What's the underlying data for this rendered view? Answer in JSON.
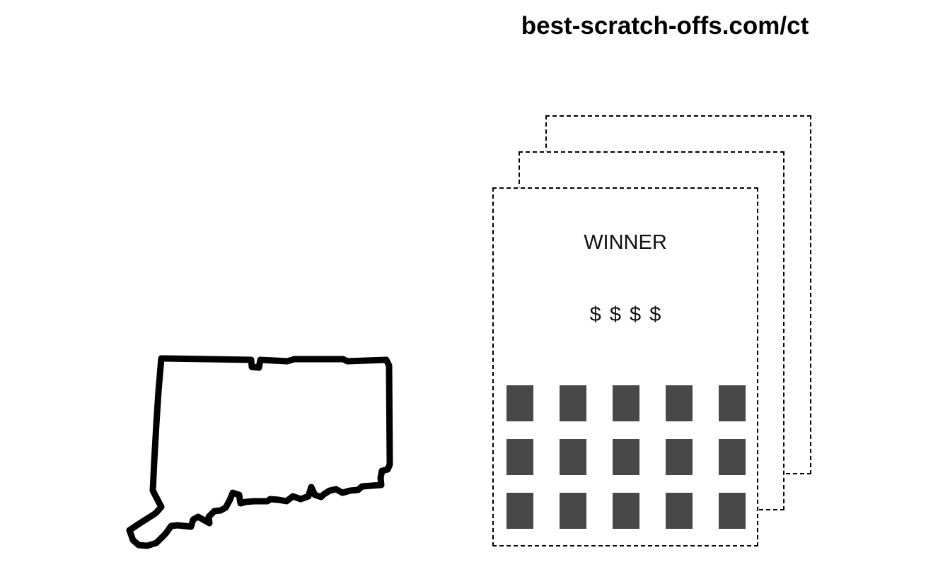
{
  "header": {
    "site_url": "best-scratch-offs.com/ct"
  },
  "state_outline": {
    "icon": "connecticut-state-outline-icon",
    "stroke_color": "#000000"
  },
  "ticket": {
    "headline": "WINNER",
    "prize": "$ $ $ $",
    "scratch_box_color": "#484848",
    "grid_rows": 3,
    "grid_cols": 5
  }
}
